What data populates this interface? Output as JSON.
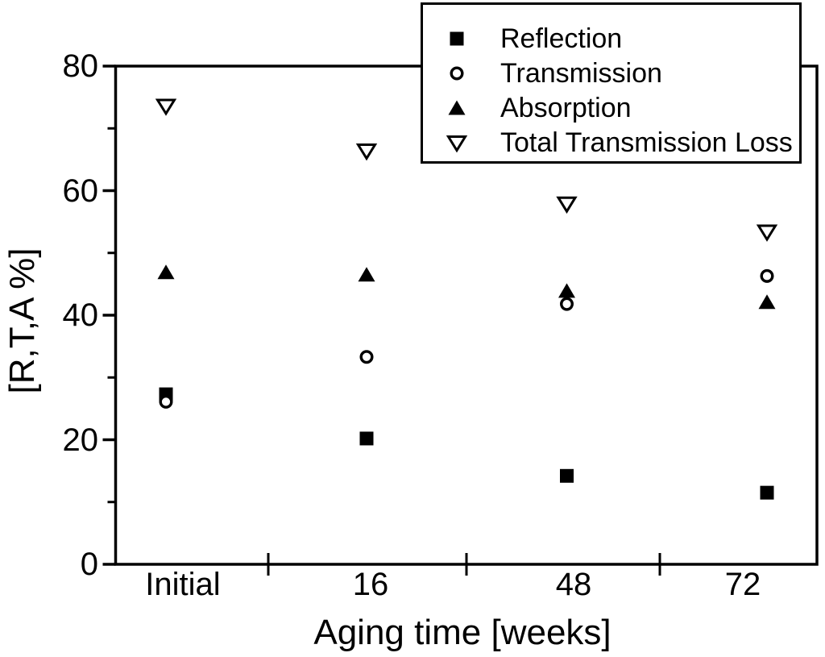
{
  "chart_data": {
    "type": "scatter",
    "title": "",
    "categories": [
      "Initial",
      "16",
      "48",
      "72"
    ],
    "series": [
      {
        "name": "Reflection",
        "marker": "filled-square",
        "values": [
          27.3,
          20.2,
          14.2,
          11.5
        ]
      },
      {
        "name": "Transmission",
        "marker": "open-circle",
        "values": [
          26.1,
          33.3,
          41.8,
          46.3
        ]
      },
      {
        "name": "Absorption",
        "marker": "filled-triangle-up",
        "values": [
          46.9,
          46.5,
          43.9,
          42.1
        ]
      },
      {
        "name": "Total Transmission Loss",
        "marker": "open-triangle-down",
        "values": [
          73.6,
          66.4,
          57.9,
          53.4
        ]
      }
    ],
    "xlabel": "Aging time [weeks]",
    "ylabel": "[R,T,A %]",
    "ylim": [
      0,
      80
    ],
    "y_major_ticks": [
      "0",
      "20",
      "40",
      "60",
      "80"
    ],
    "y_minor_ticks": [
      10,
      30,
      50,
      70
    ],
    "legend_position": "top-right",
    "grid": false,
    "colors": {
      "foreground": "#000000",
      "background": "#ffffff"
    }
  }
}
